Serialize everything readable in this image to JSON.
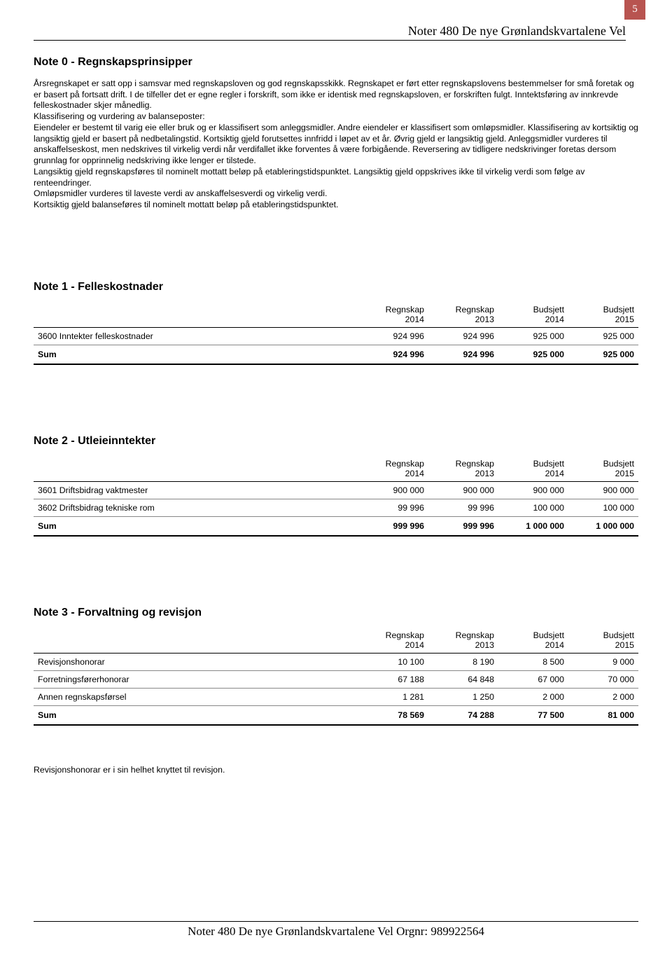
{
  "page_number": "5",
  "header_title": "Noter 480 De nye Grønlandskvartalene Vel",
  "footer_text": "Noter 480 De nye Grønlandskvartalene Vel Orgnr: 989922564",
  "note0": {
    "title": "Note 0 - Regnskapsprinsipper",
    "paragraphs": [
      "Årsregnskapet er satt opp i samsvar med regnskapsloven og god regnskapsskikk. Regnskapet er ført etter regnskapslovens bestemmelser for små foretak og er basert på fortsatt drift. I de tilfeller det er egne regler i forskrift, som ikke er identisk med regnskapsloven, er forskriften fulgt. Inntektsføring av innkrevde felleskostnader skjer månedlig.",
      "Klassifisering og vurdering av balanseposter:",
      "Eiendeler er bestemt til varig eie eller bruk og er klassifisert som anleggsmidler. Andre eiendeler er klassifisert som omløpsmidler. Klassifisering av kortsiktig og langsiktig gjeld er basert på nedbetalingstid. Kortsiktig gjeld forutsettes innfridd i løpet av et år. Øvrig gjeld er langsiktig gjeld. Anleggsmidler vurderes til anskaffelseskost, men nedskrives til virkelig verdi når verdifallet ikke forventes å være forbigående. Reversering av tidligere nedskrivinger foretas dersom grunnlag for opprinnelig nedskriving ikke lenger er tilstede.",
      "Langsiktig gjeld regnskapsføres til nominelt mottatt beløp på etableringstidspunktet. Langsiktig gjeld oppskrives ikke til virkelig verdi som følge av renteendringer.",
      "Omløpsmidler vurderes til laveste verdi av anskaffelsesverdi og virkelig verdi.",
      "Kortsiktig gjeld balanseføres til nominelt mottatt beløp på etableringstidspunktet."
    ]
  },
  "column_headers": {
    "c1a": "Regnskap",
    "c1b": "2014",
    "c2a": "Regnskap",
    "c2b": "2013",
    "c3a": "Budsjett",
    "c3b": "2014",
    "c4a": "Budsjett",
    "c4b": "2015"
  },
  "sum_label": "Sum",
  "note1": {
    "title": "Note 1 - Felleskostnader",
    "rows": [
      {
        "label": "3600 Inntekter felleskostnader",
        "v": [
          "924 996",
          "924 996",
          "925 000",
          "925 000"
        ]
      }
    ],
    "sum": [
      "924 996",
      "924 996",
      "925 000",
      "925 000"
    ]
  },
  "note2": {
    "title": "Note 2 - Utleieinntekter",
    "rows": [
      {
        "label": "3601 Driftsbidrag vaktmester",
        "v": [
          "900 000",
          "900 000",
          "900 000",
          "900 000"
        ]
      },
      {
        "label": "3602 Driftsbidrag tekniske rom",
        "v": [
          "99 996",
          "99 996",
          "100 000",
          "100 000"
        ]
      }
    ],
    "sum": [
      "999 996",
      "999 996",
      "1 000 000",
      "1 000 000"
    ]
  },
  "note3": {
    "title": "Note 3 - Forvaltning og revisjon",
    "rows": [
      {
        "label": "Revisjonshonorar",
        "v": [
          "10 100",
          "8 190",
          "8 500",
          "9 000"
        ]
      },
      {
        "label": "Forretningsførerhonorar",
        "v": [
          "67 188",
          "64 848",
          "67 000",
          "70 000"
        ]
      },
      {
        "label": "Annen regnskapsførsel",
        "v": [
          "1 281",
          "1 250",
          "2 000",
          "2 000"
        ]
      }
    ],
    "sum": [
      "78 569",
      "74 288",
      "77 500",
      "81 000"
    ],
    "footnote": "Revisjonshonorar er i sin helhet knyttet til revisjon."
  }
}
